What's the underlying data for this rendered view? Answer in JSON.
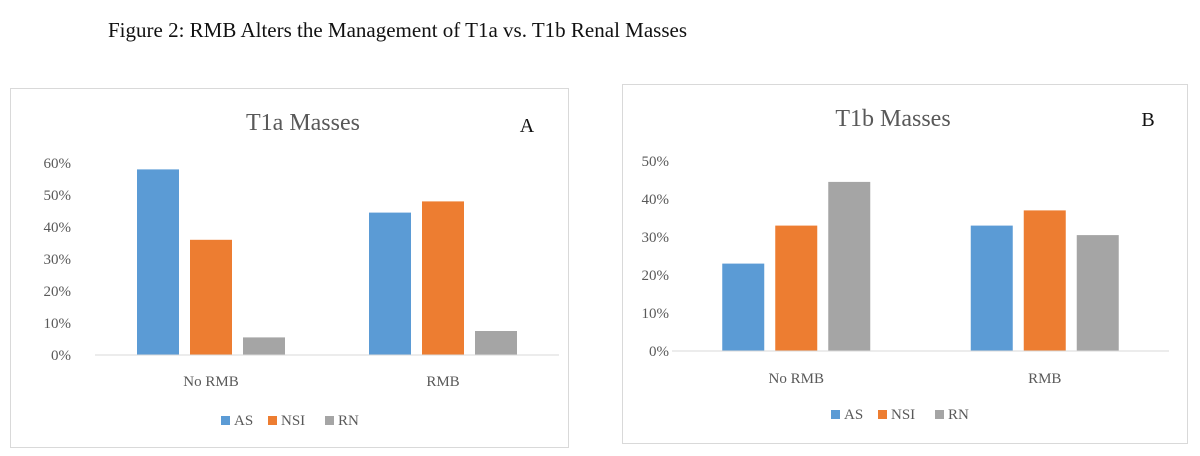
{
  "figure_title": "Figure 2: RMB Alters the Management of T1a vs. T1b Renal Masses",
  "colors": {
    "AS": "#5b9bd5",
    "NSI": "#ed7d31",
    "RN": "#a5a5a5",
    "axis": "#d9d9d9"
  },
  "chart_data": [
    {
      "type": "bar",
      "title": "T1a Masses",
      "panel_label": "A",
      "categories": [
        "No RMB",
        "RMB"
      ],
      "series": [
        {
          "name": "AS",
          "values": [
            0.58,
            0.445
          ]
        },
        {
          "name": "NSI",
          "values": [
            0.36,
            0.48
          ]
        },
        {
          "name": "RN",
          "values": [
            0.055,
            0.075
          ]
        }
      ],
      "ylim": [
        0,
        0.6
      ],
      "yticks": [
        0,
        0.1,
        0.2,
        0.3,
        0.4,
        0.5,
        0.6
      ],
      "ytick_labels": [
        "0%",
        "10%",
        "20%",
        "30%",
        "40%",
        "50%",
        "60%"
      ],
      "legend": [
        "AS",
        "NSI",
        "RN"
      ],
      "legend_position": "bottom",
      "grid": false
    },
    {
      "type": "bar",
      "title": "T1b Masses",
      "panel_label": "B",
      "categories": [
        "No RMB",
        "RMB"
      ],
      "series": [
        {
          "name": "AS",
          "values": [
            0.23,
            0.33
          ]
        },
        {
          "name": "NSI",
          "values": [
            0.33,
            0.37
          ]
        },
        {
          "name": "RN",
          "values": [
            0.445,
            0.305
          ]
        }
      ],
      "ylim": [
        0,
        0.5
      ],
      "yticks": [
        0,
        0.1,
        0.2,
        0.3,
        0.4,
        0.5
      ],
      "ytick_labels": [
        "0%",
        "10%",
        "20%",
        "30%",
        "40%",
        "50%"
      ],
      "legend": [
        "AS",
        "NSI",
        "RN"
      ],
      "legend_position": "bottom",
      "grid": false
    }
  ]
}
